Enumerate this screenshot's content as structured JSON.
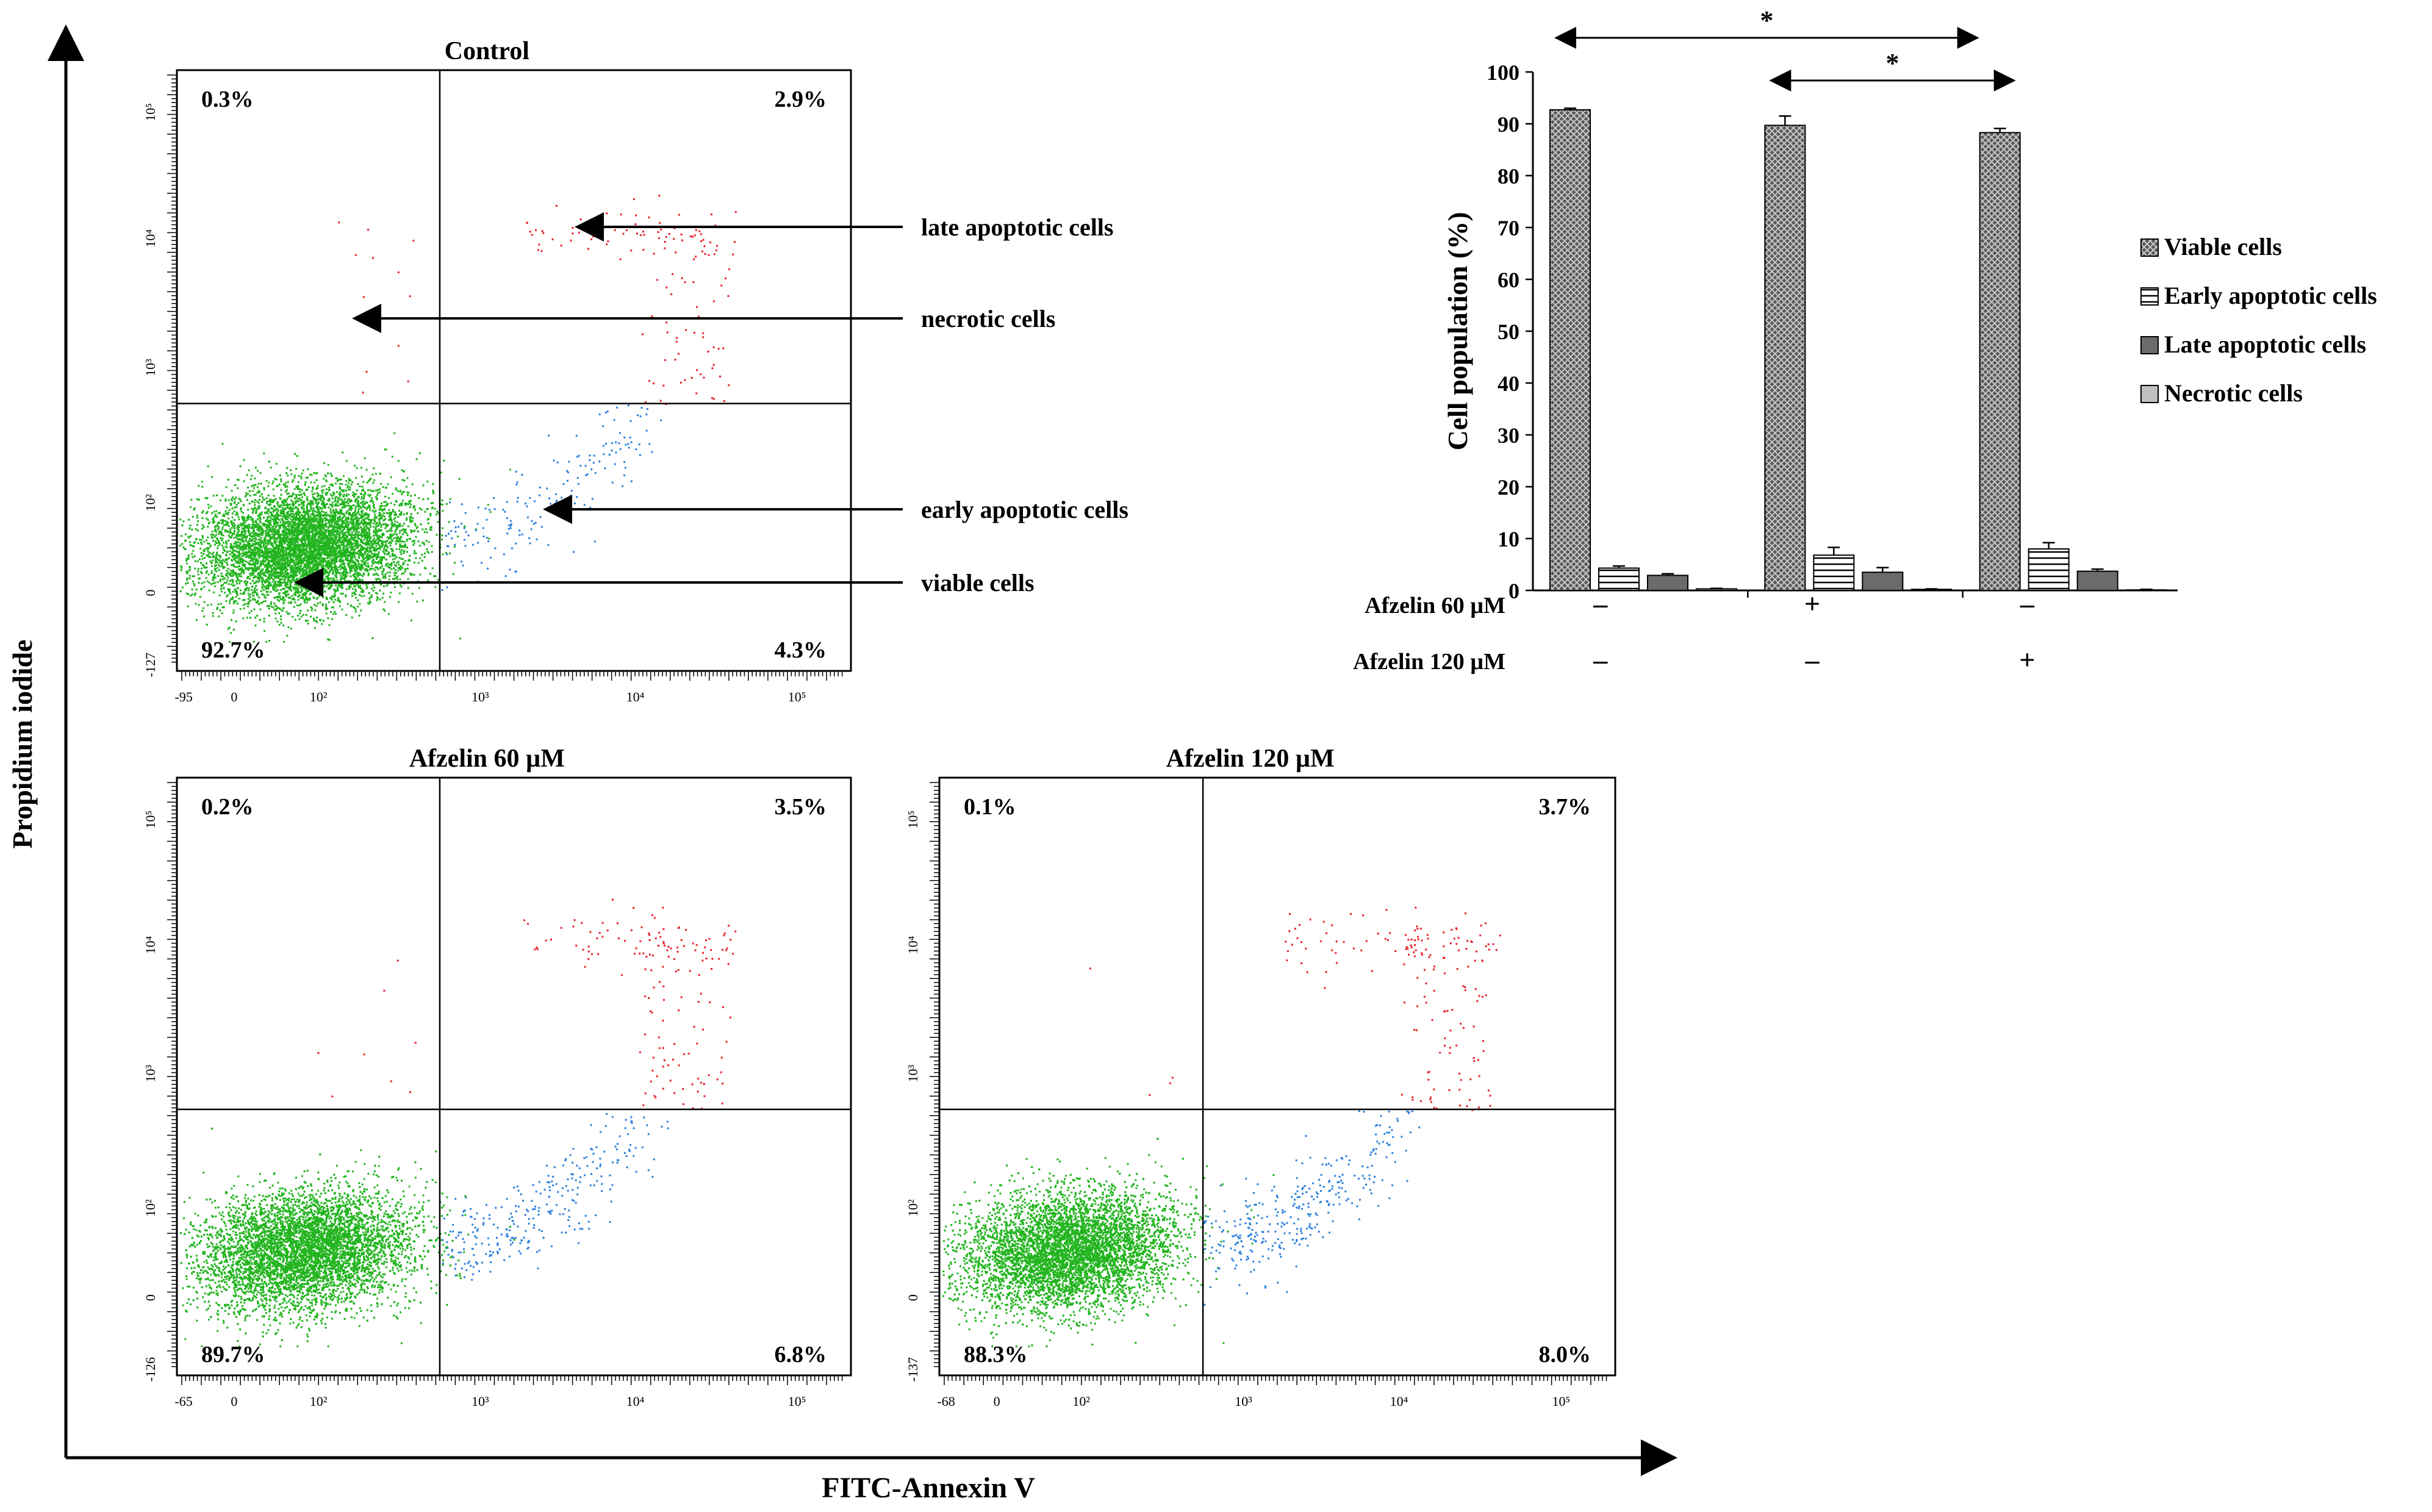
{
  "figure": {
    "y_axis_label": "Propidium iodide",
    "x_axis_label": "FITC-Annexin V",
    "annotation_arrows": [
      {
        "label": "late apoptotic cells"
      },
      {
        "label": "necrotic cells"
      },
      {
        "label": "early apoptotic cells"
      },
      {
        "label": "viable cells"
      }
    ]
  },
  "flow_panels": [
    {
      "title": "Control",
      "quadrants": {
        "upper_left": "0.3%",
        "upper_right": "2.9%",
        "lower_left": "92.7%",
        "lower_right": "4.3%"
      },
      "x_ticks": [
        "-95",
        "0",
        "10²",
        "10³",
        "10⁴",
        "10⁵"
      ],
      "y_ticks": [
        "-127",
        "0",
        "10²",
        "10³",
        "10⁴",
        "10⁵"
      ]
    },
    {
      "title": "Afzelin  60 µM",
      "quadrants": {
        "upper_left": "0.2%",
        "upper_right": "3.5%",
        "lower_left": "89.7%",
        "lower_right": "6.8%"
      },
      "x_ticks": [
        "-65",
        "0",
        "10²",
        "10³",
        "10⁴",
        "10⁵"
      ],
      "y_ticks": [
        "-126",
        "0",
        "10²",
        "10³",
        "10⁴",
        "10⁵"
      ]
    },
    {
      "title": "Afzelin  120 µM",
      "quadrants": {
        "upper_left": "0.1%",
        "upper_right": "3.7%",
        "lower_left": "88.3%",
        "lower_right": "8.0%"
      },
      "x_ticks": [
        "-68",
        "0",
        "10²",
        "10³",
        "10⁴",
        "10⁵"
      ],
      "y_ticks": [
        "-137",
        "0",
        "10²",
        "10³",
        "10⁴",
        "10⁵"
      ]
    }
  ],
  "chart_data": {
    "type": "bar",
    "title": "",
    "xlabel": "",
    "ylabel": "Cell population (%)",
    "ylim": [
      0,
      100
    ],
    "yticks": [
      0,
      10,
      20,
      30,
      40,
      50,
      60,
      70,
      80,
      90,
      100
    ],
    "groups": 3,
    "series": [
      {
        "name": "Viable cells",
        "values": [
          92.7,
          89.7,
          88.3
        ],
        "errors": [
          0.3,
          1.8,
          0.8
        ],
        "pattern": "crosshatch"
      },
      {
        "name": "Early apoptotic cells",
        "values": [
          4.3,
          6.8,
          8.0
        ],
        "errors": [
          0.4,
          1.5,
          1.2
        ],
        "pattern": "stripes"
      },
      {
        "name": "Late apoptotic cells",
        "values": [
          2.9,
          3.5,
          3.7
        ],
        "errors": [
          0.3,
          0.9,
          0.4
        ],
        "pattern": "dark"
      },
      {
        "name": "Necrotic cells",
        "values": [
          0.3,
          0.2,
          0.1
        ],
        "errors": [
          0.1,
          0.1,
          0.1
        ],
        "pattern": "light"
      }
    ],
    "condition_rows": [
      {
        "label": "Afzelin  60 µM",
        "marks": [
          "–",
          "+",
          "–"
        ]
      },
      {
        "label": "Afzelin  120 µM",
        "marks": [
          "–",
          "–",
          "+"
        ]
      }
    ],
    "significance": [
      {
        "from_group": 0,
        "to_group": 2,
        "label": "*"
      },
      {
        "from_group": 1,
        "to_group": 2,
        "label": "*"
      }
    ],
    "legend_position": "right"
  }
}
